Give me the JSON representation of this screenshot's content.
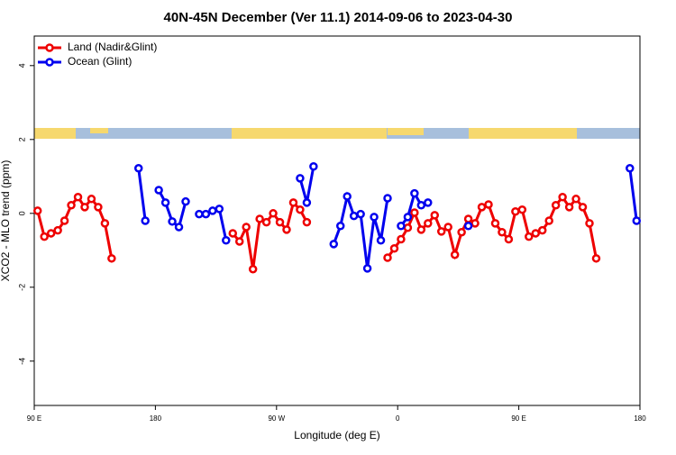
{
  "chart_data": {
    "type": "line",
    "title": "40N-45N December (Ver 11.1)   2014-09-06 to 2023-04-30",
    "x_label": "Longitude (deg E)",
    "y_label": "XCO2 - MLO trend (ppm)",
    "xlim": [
      90,
      540
    ],
    "xticks": [
      {
        "value": 90,
        "label": "90 E"
      },
      {
        "value": 180,
        "label": "180"
      },
      {
        "value": 270,
        "label": "90 W"
      },
      {
        "value": 360,
        "label": "0"
      },
      {
        "value": 450,
        "label": "90 E"
      },
      {
        "value": 540,
        "label": "180"
      }
    ],
    "ylim": [
      -5.2,
      4.8
    ],
    "yticks": [
      -4,
      -2,
      0,
      2,
      4
    ],
    "legend": "top-left",
    "x": [
      92.5,
      97.5,
      102.5,
      107.5,
      112.5,
      117.5,
      122.5,
      127.5,
      132.5,
      137.5,
      142.5,
      147.5,
      152.5,
      157.5,
      162.5,
      167.5,
      172.5,
      177.5,
      182.5,
      187.5,
      192.5,
      197.5,
      202.5,
      207.5,
      212.5,
      217.5,
      222.5,
      227.5,
      232.5,
      237.5,
      242.5,
      247.5,
      252.5,
      257.5,
      262.5,
      267.5,
      272.5,
      277.5,
      282.5,
      287.5,
      292.5,
      297.5,
      302.5,
      307.5,
      312.5,
      317.5,
      322.5,
      327.5,
      332.5,
      337.5,
      342.5,
      347.5,
      352.5,
      357.5,
      362.5,
      367.5,
      372.5,
      377.5,
      382.5,
      387.5,
      392.5,
      397.5,
      402.5,
      407.5,
      412.5,
      417.5,
      422.5,
      427.5,
      432.5,
      437.5,
      442.5,
      447.5,
      452.5,
      457.5,
      462.5,
      467.5,
      472.5,
      477.5,
      482.5,
      487.5,
      492.5,
      497.5,
      502.5,
      507.5,
      512.5,
      517.5,
      522.5,
      527.5,
      532.5,
      537.5
    ],
    "series": [
      {
        "name": "Land (Nadir&Glint)",
        "color": "#ee0000",
        "values": [
          0.07,
          -0.63,
          -0.54,
          -0.46,
          -0.2,
          0.22,
          0.44,
          0.17,
          0.39,
          0.17,
          -0.27,
          -1.22,
          null,
          null,
          null,
          null,
          null,
          null,
          null,
          null,
          null,
          null,
          null,
          null,
          null,
          null,
          null,
          null,
          null,
          -0.54,
          -0.76,
          -0.37,
          -1.51,
          -0.15,
          -0.24,
          0,
          -0.24,
          -0.44,
          0.29,
          0.1,
          -0.24,
          null,
          null,
          null,
          null,
          null,
          null,
          null,
          null,
          null,
          null,
          null,
          -1.2,
          -0.95,
          -0.7,
          -0.39,
          0.02,
          -0.44,
          -0.27,
          -0.05,
          -0.49,
          -0.37,
          -1.12,
          -0.51,
          -0.15,
          -0.27,
          0.17,
          0.24,
          -0.27,
          -0.51,
          -0.7,
          0.05,
          0.1,
          -0.63,
          -0.54,
          -0.46,
          -0.2,
          0.22,
          0.44,
          0.17,
          0.39,
          0.17,
          -0.27,
          -1.22,
          null,
          null,
          null,
          null,
          null,
          null
        ]
      },
      {
        "name": "Ocean (Glint)",
        "color": "#0000ee",
        "values": [
          null,
          null,
          null,
          null,
          null,
          null,
          null,
          null,
          null,
          null,
          null,
          null,
          null,
          null,
          null,
          1.22,
          -0.2,
          null,
          0.63,
          0.29,
          -0.22,
          -0.37,
          0.32,
          null,
          -0.02,
          -0.02,
          0.07,
          0.12,
          -0.73,
          null,
          null,
          null,
          null,
          null,
          null,
          null,
          null,
          null,
          null,
          0.95,
          0.29,
          1.27,
          null,
          null,
          -0.83,
          -0.34,
          0.46,
          -0.07,
          -0.02,
          -1.49,
          -0.1,
          -0.73,
          0.41,
          null,
          -0.34,
          -0.1,
          0.54,
          0.22,
          0.29,
          null,
          null,
          null,
          null,
          null,
          -0.34,
          null,
          null,
          null,
          null,
          null,
          null,
          null,
          null,
          null,
          null,
          null,
          null,
          null,
          null,
          null,
          null,
          null,
          null,
          null,
          null,
          null,
          null,
          null,
          1.22,
          -0.2
        ]
      }
    ]
  }
}
